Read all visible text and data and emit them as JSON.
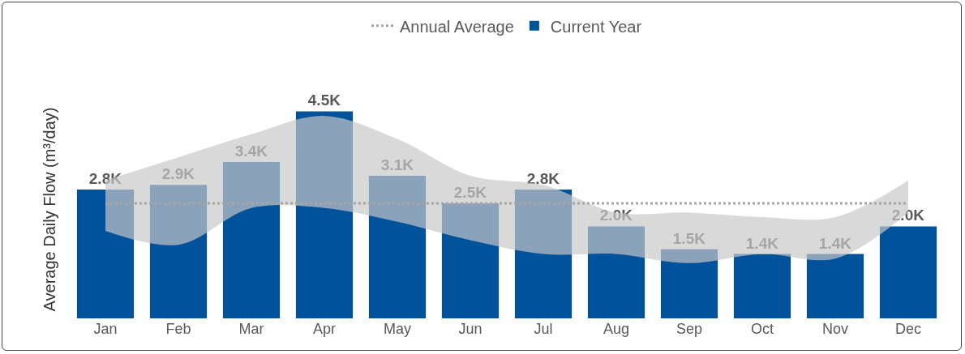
{
  "chart_data": {
    "type": "bar",
    "ylabel": "Average Daily Flow (m³/day)",
    "categories": [
      "Jan",
      "Feb",
      "Mar",
      "Apr",
      "May",
      "Jun",
      "Jul",
      "Aug",
      "Sep",
      "Oct",
      "Nov",
      "Dec"
    ],
    "series": [
      {
        "name": "Current Year",
        "color": "#00529b",
        "values": [
          2800,
          2900,
          3400,
          4500,
          3100,
          2500,
          2800,
          2000,
          1500,
          1400,
          1400,
          2000
        ],
        "value_labels": [
          "2.8K",
          "2.9K",
          "3.4K",
          "4.5K",
          "3.1K",
          "2.5K",
          "2.8K",
          "2.0K",
          "1.5K",
          "1.4K",
          "1.4K",
          "2.0K"
        ]
      },
      {
        "type": "area",
        "color": "#c8c8c8",
        "values": [
          null,
          null,
          null,
          null,
          null,
          null,
          null,
          null,
          null,
          null,
          null,
          null
        ],
        "lower": [
          1900,
          1600,
          2400,
          2400,
          2100,
          1700,
          1400,
          1400,
          1200,
          1400,
          1300,
          2300
        ],
        "upper": [
          3000,
          3500,
          4000,
          4400,
          3900,
          3100,
          2900,
          2300,
          2300,
          2200,
          2200,
          3000
        ]
      },
      {
        "name": "Annual Average",
        "type": "line",
        "color": "#a6a6a6",
        "line_style": "dotted",
        "marker": "none",
        "values": [
          2500,
          2500,
          2500,
          2500,
          2500,
          2500,
          2500,
          2500,
          2500,
          2500,
          2500,
          2500
        ]
      }
    ],
    "tick_labels": "x",
    "grid": false,
    "legend": "top"
  }
}
